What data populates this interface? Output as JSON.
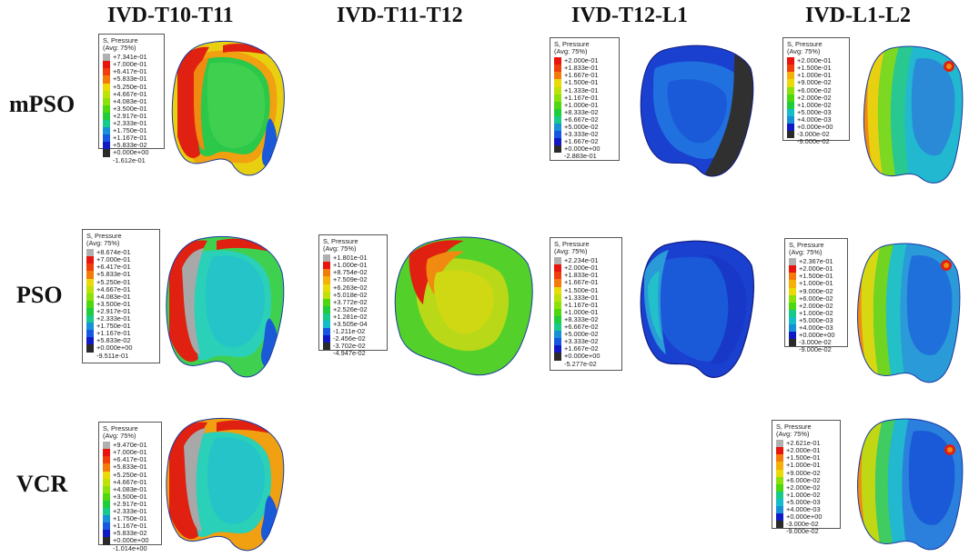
{
  "columns": [
    "IVD-T10-T11",
    "IVD-T11-T12",
    "IVD-T12-L1",
    "IVD-L1-L2"
  ],
  "rows": [
    "mPSO",
    "PSO",
    "VCR"
  ],
  "legend_common": {
    "title1": "S, Pressure",
    "title2": "(Avg: 75%)"
  },
  "legends": {
    "mPSO_T10T11": [
      "+7.341e-01",
      "+7.000e-01",
      "+6.417e-01",
      "+5.833e-01",
      "+5.250e-01",
      "+4.667e-01",
      "+4.083e-01",
      "+3.500e-01",
      "+2.917e-01",
      "+2.333e-01",
      "+1.750e-01",
      "+1.167e-01",
      "+5.833e-02",
      "+0.000e+00",
      "-1.612e-01"
    ],
    "mPSO_T12L1": [
      "+2.000e-01",
      "+1.833e-01",
      "+1.667e-01",
      "+1.500e-01",
      "+1.333e-01",
      "+1.167e-01",
      "+1.000e-01",
      "+8.333e-02",
      "+6.667e-02",
      "+5.000e-02",
      "+3.333e-02",
      "+1.667e-02",
      "+0.000e+00",
      "-2.883e-01"
    ],
    "mPSO_L1L2": [
      "+2.000e-01",
      "+1.500e-01",
      "+1.000e-01",
      "+9.000e-02",
      "+6.000e-02",
      "+2.000e-02",
      "+1.000e-02",
      "+5.000e-03",
      "+4.000e-03",
      "+0.000e+00",
      "-3.000e-02",
      "-9.000e-02"
    ],
    "PSO_T10T11": [
      "+8.674e-01",
      "+7.000e-01",
      "+6.417e-01",
      "+5.833e-01",
      "+5.250e-01",
      "+4.667e-01",
      "+4.083e-01",
      "+3.500e-01",
      "+2.917e-01",
      "+2.333e-01",
      "+1.750e-01",
      "+1.167e-01",
      "+5.833e-02",
      "+0.000e+00",
      "-9.511e-01"
    ],
    "PSO_T11T12": [
      "+1.801e-01",
      "+1.000e-01",
      "+8.754e-02",
      "+7.509e-02",
      "+6.263e-02",
      "+5.018e-02",
      "+3.772e-02",
      "+2.526e-02",
      "+1.281e-02",
      "+3.505e-04",
      "-1.211e-02",
      "-2.456e-02",
      "-3.702e-02",
      "-4.947e-02"
    ],
    "PSO_T12L1": [
      "+2.234e-01",
      "+2.000e-01",
      "+1.833e-01",
      "+1.667e-01",
      "+1.500e-01",
      "+1.333e-01",
      "+1.167e-01",
      "+1.000e-01",
      "+8.333e-02",
      "+6.667e-02",
      "+5.000e-02",
      "+3.333e-02",
      "+1.667e-02",
      "+0.000e+00",
      "-5.277e-02"
    ],
    "PSO_L1L2": [
      "+2.367e-01",
      "+2.000e-01",
      "+1.500e-01",
      "+1.000e-01",
      "+9.000e-02",
      "+6.000e-02",
      "+2.000e-02",
      "+1.000e-02",
      "+5.000e-03",
      "+4.000e-03",
      "+0.000e+00",
      "-3.000e-02",
      "-9.000e-02"
    ],
    "VCR_T10T11": [
      "+9.470e-01",
      "+7.000e-01",
      "+6.417e-01",
      "+5.833e-01",
      "+5.250e-01",
      "+4.667e-01",
      "+4.083e-01",
      "+3.500e-01",
      "+2.917e-01",
      "+2.333e-01",
      "+1.750e-01",
      "+1.167e-01",
      "+5.833e-02",
      "+0.000e+00",
      "-1.014e+00"
    ],
    "VCR_L1L2": [
      "+2.621e-01",
      "+2.000e-01",
      "+1.500e-01",
      "+1.000e-01",
      "+9.000e-02",
      "+6.000e-02",
      "+2.000e-02",
      "+1.000e-02",
      "+5.000e-03",
      "+4.000e-03",
      "+0.000e+00",
      "-3.000e-02",
      "-9.000e-02"
    ]
  },
  "colors": {
    "scale": [
      "#b0b0b0",
      "#e8140e",
      "#ef3d0c",
      "#f47a0a",
      "#f6b00a",
      "#e9da08",
      "#bfe10a",
      "#8ce10c",
      "#4cd70f",
      "#1fcc3a",
      "#17c98a",
      "#15bcc9",
      "#1790d8",
      "#1858e0",
      "#101ac4",
      "#2a2a2a"
    ],
    "disc_red": "#e02010",
    "disc_orange": "#f08a10",
    "disc_yellow": "#d8d812",
    "disc_green": "#60d024",
    "disc_cyan": "#22c0c8",
    "disc_lightblue": "#2a9ad8",
    "disc_blue": "#1a5ad8",
    "disc_navy": "#1020c0",
    "disc_gray": "#a8a8a8",
    "disc_dark": "#303030"
  }
}
